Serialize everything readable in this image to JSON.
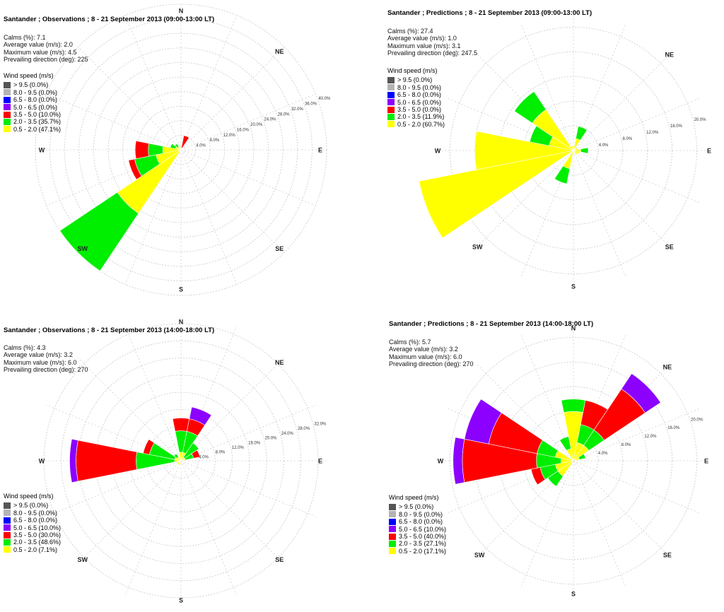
{
  "chart_data": [
    {
      "type": "wind-rose",
      "title": "Santander ; Observations ; 8 - 21 September 2013 (09:00-13:00 LT)",
      "stats": [
        {
          "label": "Calms (%)",
          "value": "7.1"
        },
        {
          "label": "Average value (m/s)",
          "value": "2.0"
        },
        {
          "label": "Maximum value (m/s)",
          "value": "4.5"
        },
        {
          "label": "Prevailing direction (deg)",
          "value": "225"
        }
      ],
      "compass": [
        "N",
        "NE",
        "E",
        "SE",
        "S",
        "SW",
        "W"
      ],
      "rings": [
        "4.0%",
        "8.0%",
        "12.0%",
        "16.0%",
        "20.0%",
        "24.0%",
        "28.0%",
        "32.0%",
        "36.0%",
        "40.0%"
      ],
      "ring_values": [
        4,
        8,
        12,
        16,
        20,
        24,
        28,
        32,
        36,
        40
      ],
      "r_max": 40,
      "legend_title": "Wind speed (m/s)",
      "legend": [
        {
          "label": "> 9.5 (0.0%)",
          "color": "#555555"
        },
        {
          "label": "8.0 - 9.5 (0.0%)",
          "color": "#b4b4b4"
        },
        {
          "label": "6.5 - 8.0 (0.0%)",
          "color": "#0000ff"
        },
        {
          "label": "5.0 - 6.5 (0.0%)",
          "color": "#8b00ff"
        },
        {
          "label": "3.5 - 5.0 (10.0%)",
          "color": "#ff0000"
        },
        {
          "label": "2.0 - 3.5 (35.7%)",
          "color": "#00ee00"
        },
        {
          "label": "0.5 - 2.0 (47.1%)",
          "color": "#ffff00"
        }
      ],
      "sectors": [
        {
          "dir": 0,
          "values": [
            1.0
          ]
        },
        {
          "dir": 22.5,
          "values": [
            0.5,
            0,
            3.5
          ]
        },
        {
          "dir": 45,
          "values": [
            0.5
          ]
        },
        {
          "dir": 90,
          "values": [
            0.4
          ]
        },
        {
          "dir": 157.5,
          "values": [
            0.4
          ]
        },
        {
          "dir": 202.5,
          "values": [
            0.4
          ]
        },
        {
          "dir": 225,
          "values": [
            21.0,
            19.0
          ]
        },
        {
          "dir": 247.5,
          "values": [
            7.0,
            6.0,
            1.7
          ]
        },
        {
          "dir": 270,
          "values": [
            5.0,
            4.0,
            3.6
          ]
        },
        {
          "dir": 292.5,
          "values": [
            1.5,
            1.5
          ]
        },
        {
          "dir": 315,
          "values": [
            1.0,
            1.0
          ]
        },
        {
          "dir": 337.5,
          "values": [
            0.6
          ]
        }
      ]
    },
    {
      "type": "wind-rose",
      "title": "Santander ; Predictions ; 8 - 21 September 2013 (09:00-13:00 LT)",
      "stats": [
        {
          "label": "Calms (%)",
          "value": "27.4"
        },
        {
          "label": "Average value (m/s)",
          "value": "1.0"
        },
        {
          "label": "Maximum value (m/s)",
          "value": "3.1"
        },
        {
          "label": "Prevailing direction (deg)",
          "value": "247.5"
        }
      ],
      "compass": [
        "NE",
        "E",
        "SE",
        "S",
        "SW",
        "W"
      ],
      "rings": [
        "4.0%",
        "8.0%",
        "12.0%",
        "16.0%",
        "20.0%"
      ],
      "ring_values": [
        4,
        8,
        12,
        16,
        20
      ],
      "r_max": 22,
      "legend_title": "Wind speed (m/s)",
      "legend": [
        {
          "label": "> 9.5 (0.0%)",
          "color": "#555555"
        },
        {
          "label": "8.0 - 9.5 (0.0%)",
          "color": "#b4b4b4"
        },
        {
          "label": "6.5 - 8.0 (0.0%)",
          "color": "#0000ff"
        },
        {
          "label": "5.0 - 6.5 (0.0%)",
          "color": "#8b00ff"
        },
        {
          "label": "3.5 - 5.0 (0.0%)",
          "color": "#ff0000"
        },
        {
          "label": "2.0 - 3.5 (11.9%)",
          "color": "#00ee00"
        },
        {
          "label": "0.5 - 2.0 (60.7%)",
          "color": "#ffff00"
        }
      ],
      "sectors": [
        {
          "dir": 22.5,
          "values": [
            2.0,
            2.0
          ]
        },
        {
          "dir": 67.5,
          "values": [
            0.8
          ]
        },
        {
          "dir": 90,
          "values": [
            1.2,
            1.2
          ]
        },
        {
          "dir": 112.5,
          "values": [
            1.0
          ]
        },
        {
          "dir": 135,
          "values": [
            0.8
          ]
        },
        {
          "dir": 202.5,
          "values": [
            3.0,
            2.5
          ]
        },
        {
          "dir": 247.5,
          "values": [
            25.5
          ]
        },
        {
          "dir": 270,
          "values": [
            16.0
          ]
        },
        {
          "dir": 292.5,
          "values": [
            4.0,
            3.2
          ]
        },
        {
          "dir": 315,
          "values": [
            8.0,
            3.5
          ]
        },
        {
          "dir": 337.5,
          "values": [
            0.8
          ]
        }
      ]
    },
    {
      "type": "wind-rose",
      "title": "Santander ; Observations ; 8 - 21 September 2013 (14:00-18:00 LT)",
      "stats": [
        {
          "label": "Calms (%)",
          "value": "4.3"
        },
        {
          "label": "Average value (m/s)",
          "value": "3.2"
        },
        {
          "label": "Maximum value (m/s)",
          "value": "6.0"
        },
        {
          "label": "Prevailing direction (deg)",
          "value": "270"
        }
      ],
      "compass": [
        "N",
        "NE",
        "E",
        "SE",
        "S",
        "SW",
        "W"
      ],
      "rings": [
        "4.0%",
        "8.0%",
        "12.0%",
        "16.0%",
        "20.0%",
        "24.0%",
        "28.0%",
        "32.0%"
      ],
      "ring_values": [
        4,
        8,
        12,
        16,
        20,
        24,
        28,
        32
      ],
      "r_max": 34,
      "legend_title": "Wind speed (m/s)",
      "legend": [
        {
          "label": "> 9.5 (0.0%)",
          "color": "#555555"
        },
        {
          "label": "8.0 - 9.5 (0.0%)",
          "color": "#b4b4b4"
        },
        {
          "label": "6.5 - 8.0 (0.0%)",
          "color": "#0000ff"
        },
        {
          "label": "5.0 - 6.5 (10.0%)",
          "color": "#8b00ff"
        },
        {
          "label": "3.5 - 5.0 (30.0%)",
          "color": "#ff0000"
        },
        {
          "label": "2.0 - 3.5 (48.6%)",
          "color": "#00ee00"
        },
        {
          "label": "0.5 - 2.0 (7.1%)",
          "color": "#ffff00"
        }
      ],
      "sectors": [
        {
          "dir": 0,
          "values": [
            2.0,
            5.0,
            3.0
          ]
        },
        {
          "dir": 22.5,
          "values": [
            2.0,
            5.0,
            3.0,
            2.8
          ]
        },
        {
          "dir": 45,
          "values": [
            1.0,
            4.0
          ]
        },
        {
          "dir": 67.5,
          "values": [
            1.0,
            2.0,
            1.5
          ]
        },
        {
          "dir": 180,
          "values": [
            1.0
          ]
        },
        {
          "dir": 225,
          "values": [
            1.0
          ]
        },
        {
          "dir": 270,
          "values": [
            1.5,
            9.0,
            14.0,
            1.5
          ]
        },
        {
          "dir": 292.5,
          "values": [
            1.5,
            6.0,
            1.5
          ]
        },
        {
          "dir": 315,
          "values": [
            1.0,
            1.0
          ]
        },
        {
          "dir": 337.5,
          "values": [
            1.0
          ]
        }
      ]
    },
    {
      "type": "wind-rose",
      "title": "Santander ; Predictions ; 8 - 21 September 2013 (14:00-18:00 LT)",
      "stats": [
        {
          "label": "Calms (%)",
          "value": "5.7"
        },
        {
          "label": "Average value (m/s)",
          "value": "3.2"
        },
        {
          "label": "Maximum value (m/s)",
          "value": "6.0"
        },
        {
          "label": "Prevailing direction (deg)",
          "value": "270"
        }
      ],
      "compass": [
        "N",
        "NE",
        "E",
        "SE",
        "S",
        "SW",
        "W"
      ],
      "rings": [
        "4.0%",
        "8.0%",
        "12.0%",
        "16.0%",
        "20.0%"
      ],
      "ring_values": [
        4,
        8,
        12,
        16,
        20
      ],
      "r_max": 22,
      "legend_title": "Wind speed (m/s)",
      "legend": [
        {
          "label": "> 9.5 (0.0%)",
          "color": "#555555"
        },
        {
          "label": "8.0 - 9.5 (0.0%)",
          "color": "#b4b4b4"
        },
        {
          "label": "6.5 - 8.0 (0.0%)",
          "color": "#0000ff"
        },
        {
          "label": "5.0 - 6.5 (10.0%)",
          "color": "#8b00ff"
        },
        {
          "label": "3.5 - 5.0 (40.0%)",
          "color": "#ff0000"
        },
        {
          "label": "2.0 - 3.5 (27.1%)",
          "color": "#00ee00"
        },
        {
          "label": "0.5 - 2.0 (17.1%)",
          "color": "#ffff00"
        }
      ],
      "sectors": [
        {
          "dir": 0,
          "values": [
            8.0,
            2.0
          ]
        },
        {
          "dir": 22.5,
          "values": [
            3.0,
            3.0,
            4.0
          ]
        },
        {
          "dir": 45,
          "values": [
            3.0,
            3.0,
            8.0,
            3.0
          ]
        },
        {
          "dir": 67.5,
          "values": [
            1.0,
            1.0
          ]
        },
        {
          "dir": 225,
          "values": [
            3.0,
            2.0
          ]
        },
        {
          "dir": 247.5,
          "values": [
            3.0,
            2.5,
            1.5
          ]
        },
        {
          "dir": 270,
          "values": [
            2.0,
            4.0,
            12.0,
            1.5
          ]
        },
        {
          "dir": 292.5,
          "values": [
            3.0,
            3.0,
            8.0,
            4.0
          ]
        },
        {
          "dir": 337.5,
          "values": [
            2.0,
            2.0
          ]
        }
      ]
    }
  ]
}
